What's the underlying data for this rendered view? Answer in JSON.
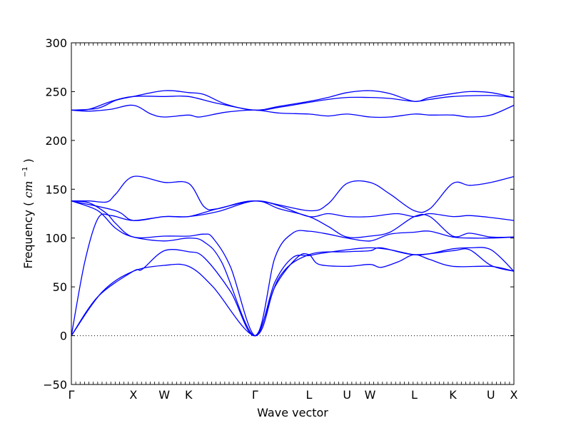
{
  "chart_data": {
    "type": "line",
    "xlabel": "Wave vector",
    "ylabel": "Frequency",
    "ylabel_unit": "cm",
    "ylabel_unit_exp": "−1",
    "ylim": [
      -50,
      300
    ],
    "yticks": [
      -50,
      0,
      50,
      100,
      150,
      200,
      250,
      300
    ],
    "xlim": [
      0,
      1
    ],
    "high_symmetry_points": [
      {
        "label": "Γ",
        "x": 0.0
      },
      {
        "label": "X",
        "x": 0.14
      },
      {
        "label": "W",
        "x": 0.21
      },
      {
        "label": "K",
        "x": 0.265
      },
      {
        "label": "Γ",
        "x": 0.415
      },
      {
        "label": "L",
        "x": 0.537
      },
      {
        "label": "U",
        "x": 0.623
      },
      {
        "label": "W",
        "x": 0.675
      },
      {
        "label": "L",
        "x": 0.775
      },
      {
        "label": "K",
        "x": 0.862
      },
      {
        "label": "U",
        "x": 0.948
      },
      {
        "label": "X",
        "x": 1.0
      }
    ],
    "zero_line": true,
    "line_color": "#0000ff",
    "series": [
      {
        "points": [
          [
            0,
            0
          ],
          [
            0.03,
            75
          ],
          [
            0.06,
            120
          ],
          [
            0.09,
            123
          ],
          [
            0.14,
            118
          ],
          [
            0.21,
            122
          ],
          [
            0.265,
            122
          ],
          [
            0.33,
            130
          ],
          [
            0.415,
            138
          ],
          [
            0.47,
            133
          ],
          [
            0.537,
            122
          ],
          [
            0.58,
            125
          ],
          [
            0.623,
            122
          ],
          [
            0.675,
            122
          ],
          [
            0.735,
            125
          ],
          [
            0.775,
            122
          ],
          [
            0.81,
            125
          ],
          [
            0.862,
            122
          ],
          [
            0.9,
            123
          ],
          [
            0.948,
            121
          ],
          [
            1.0,
            118
          ]
        ]
      },
      {
        "points": [
          [
            0,
            138
          ],
          [
            0.04,
            136
          ],
          [
            0.08,
            125
          ],
          [
            0.1,
            115
          ],
          [
            0.14,
            101
          ],
          [
            0.21,
            102
          ],
          [
            0.265,
            102
          ],
          [
            0.3,
            104
          ],
          [
            0.32,
            100
          ],
          [
            0.36,
            70
          ],
          [
            0.415,
            0
          ],
          [
            0.46,
            55
          ],
          [
            0.5,
            80
          ],
          [
            0.537,
            82
          ],
          [
            0.56,
            84
          ],
          [
            0.623,
            88
          ],
          [
            0.675,
            90
          ],
          [
            0.72,
            88
          ],
          [
            0.775,
            83
          ],
          [
            0.81,
            84
          ],
          [
            0.862,
            89
          ],
          [
            0.9,
            90
          ],
          [
            0.948,
            88
          ],
          [
            1.0,
            66
          ]
        ]
      },
      {
        "points": [
          [
            0,
            0
          ],
          [
            0.06,
            40
          ],
          [
            0.14,
            66
          ],
          [
            0.16,
            68
          ],
          [
            0.21,
            87
          ],
          [
            0.265,
            86
          ],
          [
            0.3,
            80
          ],
          [
            0.36,
            45
          ],
          [
            0.415,
            0
          ],
          [
            0.47,
            60
          ],
          [
            0.537,
            83
          ],
          [
            0.623,
            86
          ],
          [
            0.675,
            87
          ],
          [
            0.7,
            90
          ],
          [
            0.775,
            83
          ],
          [
            0.862,
            87
          ],
          [
            0.9,
            88
          ],
          [
            0.948,
            72
          ],
          [
            1.0,
            66
          ]
        ]
      },
      {
        "points": [
          [
            0,
            0
          ],
          [
            0.07,
            45
          ],
          [
            0.14,
            66
          ],
          [
            0.21,
            72
          ],
          [
            0.265,
            71
          ],
          [
            0.32,
            50
          ],
          [
            0.415,
            0
          ],
          [
            0.46,
            50
          ],
          [
            0.51,
            80
          ],
          [
            0.537,
            83
          ],
          [
            0.56,
            73
          ],
          [
            0.623,
            71
          ],
          [
            0.675,
            73
          ],
          [
            0.7,
            70
          ],
          [
            0.74,
            76
          ],
          [
            0.775,
            83
          ],
          [
            0.81,
            78
          ],
          [
            0.862,
            71
          ],
          [
            0.948,
            71
          ],
          [
            1.0,
            66
          ]
        ]
      },
      {
        "points": [
          [
            0,
            138
          ],
          [
            0.06,
            128
          ],
          [
            0.1,
            110
          ],
          [
            0.14,
            101
          ],
          [
            0.21,
            97
          ],
          [
            0.265,
            100
          ],
          [
            0.3,
            96
          ],
          [
            0.34,
            75
          ],
          [
            0.415,
            0
          ],
          [
            0.46,
            80
          ],
          [
            0.5,
            105
          ],
          [
            0.537,
            107
          ],
          [
            0.58,
            104
          ],
          [
            0.623,
            100
          ],
          [
            0.675,
            97
          ],
          [
            0.72,
            104
          ],
          [
            0.775,
            106
          ],
          [
            0.81,
            107
          ],
          [
            0.862,
            101
          ],
          [
            0.9,
            100
          ],
          [
            0.948,
            100
          ],
          [
            1.0,
            101
          ]
        ]
      },
      {
        "points": [
          [
            0,
            138
          ],
          [
            0.04,
            138
          ],
          [
            0.08,
            137
          ],
          [
            0.1,
            145
          ],
          [
            0.14,
            163
          ],
          [
            0.21,
            157
          ],
          [
            0.265,
            156
          ],
          [
            0.3,
            132
          ],
          [
            0.33,
            130
          ],
          [
            0.415,
            138
          ],
          [
            0.537,
            128
          ],
          [
            0.58,
            135
          ],
          [
            0.623,
            156
          ],
          [
            0.675,
            157
          ],
          [
            0.72,
            145
          ],
          [
            0.775,
            128
          ],
          [
            0.81,
            130
          ],
          [
            0.862,
            156
          ],
          [
            0.9,
            154
          ],
          [
            0.948,
            157
          ],
          [
            1.0,
            163
          ]
        ]
      },
      {
        "points": [
          [
            0,
            138
          ],
          [
            0.1,
            128
          ],
          [
            0.14,
            118
          ],
          [
            0.21,
            122
          ],
          [
            0.265,
            122
          ],
          [
            0.33,
            127
          ],
          [
            0.415,
            138
          ],
          [
            0.47,
            130
          ],
          [
            0.537,
            122
          ],
          [
            0.58,
            112
          ],
          [
            0.623,
            101
          ],
          [
            0.675,
            102
          ],
          [
            0.72,
            106
          ],
          [
            0.775,
            122
          ],
          [
            0.81,
            122
          ],
          [
            0.862,
            102
          ],
          [
            0.9,
            105
          ],
          [
            0.948,
            101
          ],
          [
            1.0,
            101
          ]
        ]
      },
      {
        "points": [
          [
            0,
            231
          ],
          [
            0.04,
            232
          ],
          [
            0.09,
            240
          ],
          [
            0.14,
            245
          ],
          [
            0.21,
            245
          ],
          [
            0.265,
            245
          ],
          [
            0.33,
            238
          ],
          [
            0.415,
            231
          ],
          [
            0.47,
            234
          ],
          [
            0.537,
            239
          ],
          [
            0.58,
            242
          ],
          [
            0.623,
            244
          ],
          [
            0.675,
            244
          ],
          [
            0.72,
            243
          ],
          [
            0.775,
            240
          ],
          [
            0.81,
            242
          ],
          [
            0.862,
            245
          ],
          [
            0.948,
            246
          ],
          [
            1.0,
            244
          ]
        ]
      },
      {
        "points": [
          [
            0,
            231
          ],
          [
            0.06,
            233
          ],
          [
            0.1,
            241
          ],
          [
            0.14,
            245
          ],
          [
            0.21,
            251
          ],
          [
            0.265,
            249
          ],
          [
            0.3,
            247
          ],
          [
            0.35,
            237
          ],
          [
            0.415,
            231
          ],
          [
            0.47,
            235
          ],
          [
            0.537,
            240
          ],
          [
            0.58,
            244
          ],
          [
            0.623,
            249
          ],
          [
            0.675,
            251
          ],
          [
            0.72,
            248
          ],
          [
            0.775,
            240
          ],
          [
            0.81,
            244
          ],
          [
            0.862,
            248
          ],
          [
            0.9,
            250
          ],
          [
            0.948,
            249
          ],
          [
            1.0,
            244
          ]
        ]
      },
      {
        "points": [
          [
            0,
            231
          ],
          [
            0.04,
            230
          ],
          [
            0.09,
            232
          ],
          [
            0.14,
            236
          ],
          [
            0.18,
            227
          ],
          [
            0.21,
            224
          ],
          [
            0.265,
            226
          ],
          [
            0.29,
            224
          ],
          [
            0.35,
            229
          ],
          [
            0.415,
            231
          ],
          [
            0.47,
            228
          ],
          [
            0.537,
            227
          ],
          [
            0.58,
            225
          ],
          [
            0.623,
            227
          ],
          [
            0.675,
            224
          ],
          [
            0.72,
            224
          ],
          [
            0.775,
            227
          ],
          [
            0.81,
            226
          ],
          [
            0.862,
            226
          ],
          [
            0.9,
            224
          ],
          [
            0.948,
            226
          ],
          [
            1.0,
            236
          ]
        ]
      }
    ]
  }
}
